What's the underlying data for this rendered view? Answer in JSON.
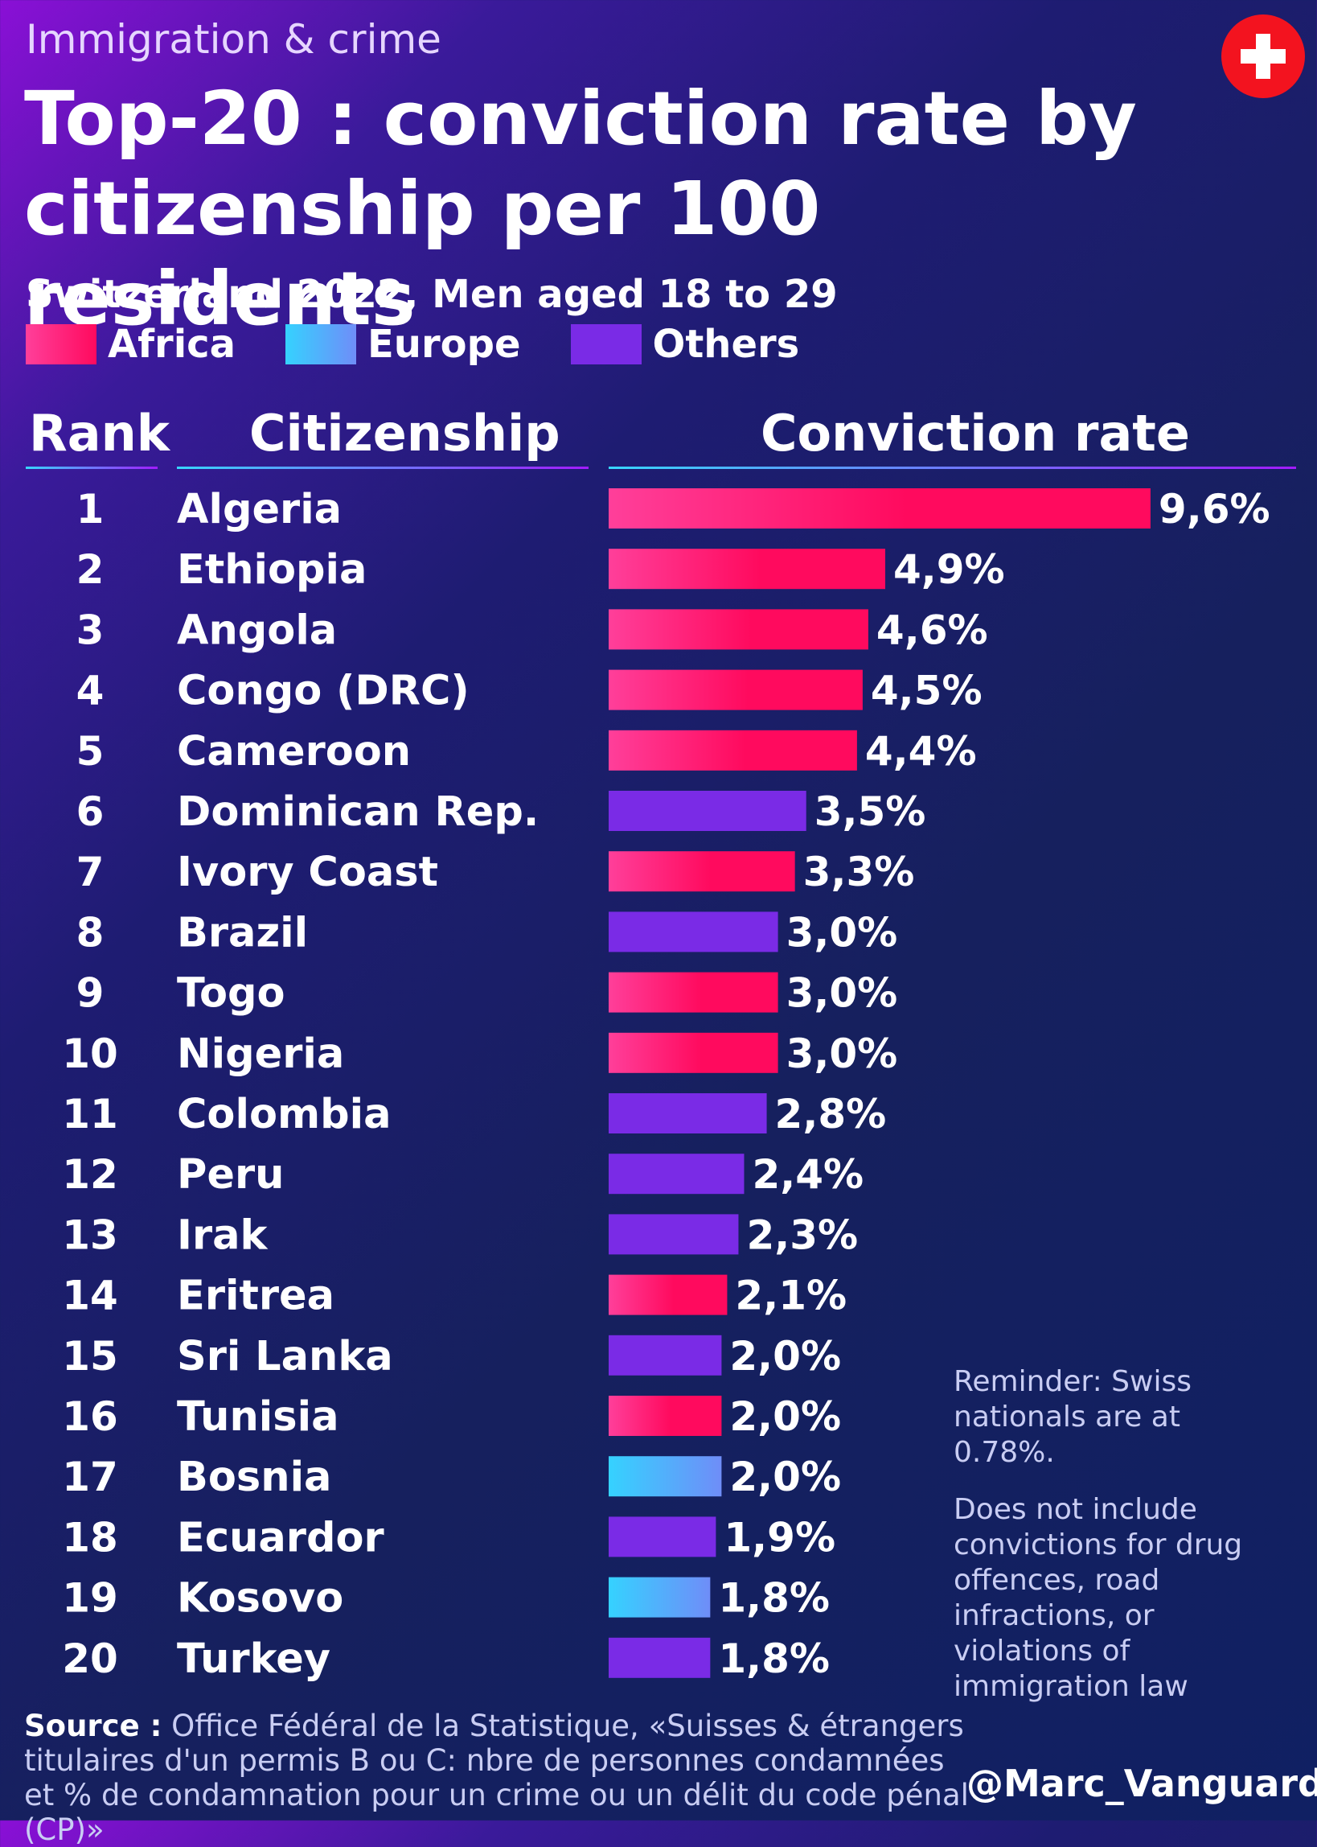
{
  "header": {
    "kicker": "Immigration & crime",
    "title": "Top-20 : conviction rate by citizenship per 100 residents",
    "subtitle": "Switzerland 2022, Men aged 18 to 29"
  },
  "legend": [
    {
      "label": "Africa",
      "color": "#ff1468"
    },
    {
      "label": "Europe",
      "color": "#4aa8ff"
    },
    {
      "label": "Others",
      "color": "#7a2be6"
    }
  ],
  "flag_icon": "swiss-flag-icon",
  "columns": {
    "rank": "Rank",
    "citizenship": "Citizenship",
    "rate": "Conviction rate"
  },
  "colors": {
    "africa_start": "#ff3f9a",
    "africa_end": "#ff0a5e",
    "europe_start": "#35d2ff",
    "europe_end": "#6f8df8",
    "others": "#7a2be6"
  },
  "chart_data": {
    "type": "bar",
    "orientation": "horizontal",
    "unit": "%",
    "xlim": [
      0,
      10
    ],
    "grid": false,
    "legend_placement": "top-left",
    "categories": [
      "Algeria",
      "Ethiopia",
      "Angola",
      "Congo (DRC)",
      "Cameroon",
      "Dominican Rep.",
      "Ivory Coast",
      "Brazil",
      "Togo",
      "Nigeria",
      "Colombia",
      "Peru",
      "Irak",
      "Eritrea",
      "Sri Lanka",
      "Tunisia",
      "Bosnia",
      "Ecuardor",
      "Kosovo",
      "Turkey"
    ],
    "ranks": [
      "1",
      "2",
      "3",
      "4",
      "5",
      "6",
      "7",
      "8",
      "9",
      "10",
      "11",
      "12",
      "13",
      "14",
      "15",
      "16",
      "17",
      "18",
      "19",
      "20"
    ],
    "values": [
      9.6,
      4.9,
      4.6,
      4.5,
      4.4,
      3.5,
      3.3,
      3.0,
      3.0,
      3.0,
      2.8,
      2.4,
      2.3,
      2.1,
      2.0,
      2.0,
      2.0,
      1.9,
      1.8,
      1.8
    ],
    "value_labels": [
      "9,6%",
      "4,9%",
      "4,6%",
      "4,5%",
      "4,4%",
      "3,5%",
      "3,3%",
      "3,0%",
      "3,0%",
      "3,0%",
      "2,8%",
      "2,4%",
      "2,3%",
      "2,1%",
      "2,0%",
      "2,0%",
      "2,0%",
      "1,9%",
      "1,8%",
      "1,8%"
    ],
    "groups": [
      "Africa",
      "Africa",
      "Africa",
      "Africa",
      "Africa",
      "Others",
      "Africa",
      "Others",
      "Africa",
      "Africa",
      "Others",
      "Others",
      "Others",
      "Africa",
      "Others",
      "Africa",
      "Europe",
      "Others",
      "Europe",
      "Others"
    ]
  },
  "notes": {
    "reminder": "Reminder: Swiss nationals are at 0.78%.",
    "exclusion": "Does not include convictions for drug offences, road infractions, or violations of immigration law"
  },
  "footer": {
    "source_label": "Source :",
    "source_text": "Office Fédéral de la Statistique, «Suisses & étrangers titulaires d'un permis B ou C: nbre de personnes condamnées et % de condamnation pour un crime ou un délit du code pénal (CP)»",
    "handle": "@Marc_Vanguard_i"
  }
}
